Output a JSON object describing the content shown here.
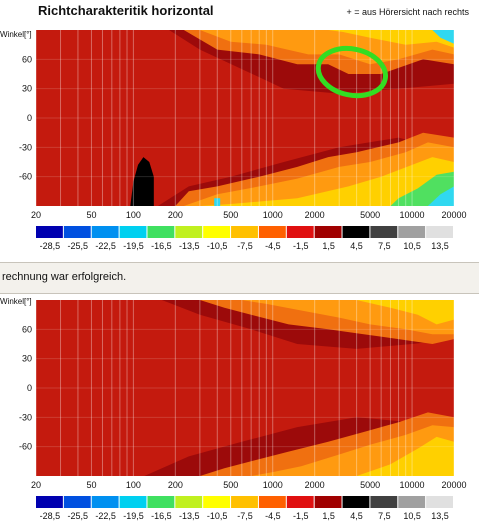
{
  "header": {
    "title": "Richtcharakteritik horizontal",
    "note": "+ = aus Hörersicht nach rechts"
  },
  "status": {
    "message": "rechnung war erfolgreich."
  },
  "colors": {
    "highlight_circle": "#33dd22",
    "background": "#ffffff",
    "status_bar": "#f3f1ec"
  },
  "chart_data": [
    {
      "type": "heatmap",
      "ylabel": "Winkel[°]",
      "xlabel": "",
      "x_scale": "log",
      "xlim": [
        20,
        20000
      ],
      "ylim": [
        -90,
        90
      ],
      "x_ticks": [
        "20",
        "50",
        "100",
        "200",
        "500",
        "1000",
        "2000",
        "5000",
        "10000",
        "20000"
      ],
      "y_ticks": [
        "60",
        "30",
        "0",
        "-30",
        "-60"
      ],
      "colorbar_ticks": [
        "-28,5",
        "-25,5",
        "-22,5",
        "-19,5",
        "-16,5",
        "-13,5",
        "-10,5",
        "-7,5",
        "-4,5",
        "-1,5",
        "1,5",
        "4,5",
        "7,5",
        "10,5",
        "13,5"
      ],
      "colorbar_colors": [
        "#0000b0",
        "#0050e0",
        "#0090f0",
        "#00d0f0",
        "#40e060",
        "#c0f020",
        "#ffff00",
        "#ffc000",
        "#ff6000",
        "#e01010",
        "#a00000",
        "#000000",
        "#404040",
        "#a0a0a0",
        "#e0e0e0"
      ],
      "annotation": "green circle marking region around 2500–5000 Hz, +40…+70°"
    },
    {
      "type": "heatmap",
      "ylabel": "Winkel[°]",
      "xlabel": "",
      "x_scale": "log",
      "xlim": [
        20,
        20000
      ],
      "ylim": [
        -90,
        90
      ],
      "x_ticks": [
        "20",
        "50",
        "100",
        "200",
        "500",
        "1000",
        "2000",
        "5000",
        "10000",
        "20000"
      ],
      "y_ticks": [
        "60",
        "30",
        "0",
        "-30",
        "-60"
      ],
      "colorbar_ticks": [
        "-28,5",
        "-25,5",
        "-22,5",
        "-19,5",
        "-16,5",
        "-13,5",
        "-10,5",
        "-7,5",
        "-4,5",
        "-1,5",
        "1,5",
        "4,5",
        "7,5",
        "10,5",
        "13,5"
      ],
      "colorbar_colors": [
        "#0000b0",
        "#0050e0",
        "#0090f0",
        "#00d0f0",
        "#40e060",
        "#c0f020",
        "#ffff00",
        "#ffc000",
        "#ff6000",
        "#e01010",
        "#a00000",
        "#000000",
        "#404040",
        "#a0a0a0",
        "#e0e0e0"
      ]
    }
  ]
}
